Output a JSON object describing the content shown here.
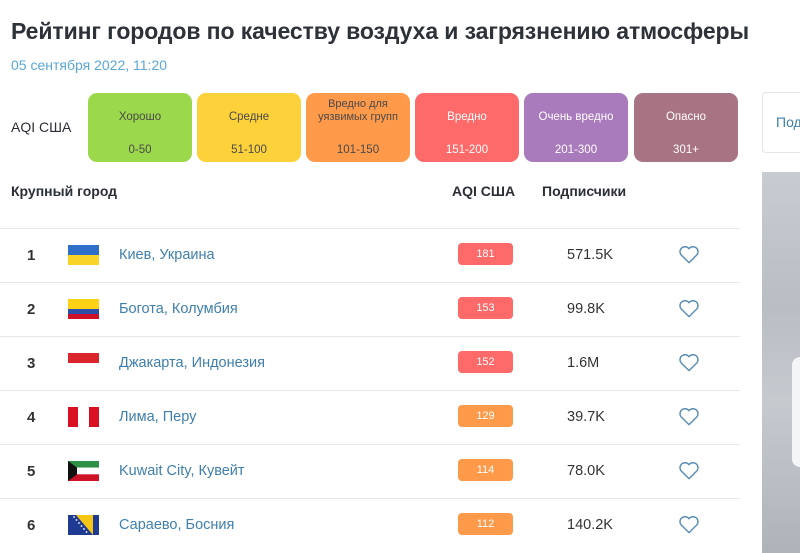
{
  "page": {
    "title": "Рейтинг городов по качеству воздуха и загрязнению атмосферы",
    "date": "05 сентября 2022, 11:20"
  },
  "legend": {
    "label": "AQI США",
    "items": [
      {
        "name": "Хорошо",
        "range": "0-50",
        "color": "#9bd84c"
      },
      {
        "name": "Средне",
        "range": "51-100",
        "color": "#fcd13a"
      },
      {
        "name": "Вредно для уязвимых групп",
        "range": "101-150",
        "color": "#fe9a4a"
      },
      {
        "name": "Вредно",
        "range": "151-200",
        "color": "#fe6a69"
      },
      {
        "name": "Очень вредно",
        "range": "201-300",
        "color": "#a97abc"
      },
      {
        "name": "Опасно",
        "range": "301+",
        "color": "#a87383"
      }
    ]
  },
  "table": {
    "headers": {
      "city": "Крупный город",
      "aqi": "AQI США",
      "subscribers": "Подписчики"
    },
    "rows": [
      {
        "rank": "1",
        "flag": "ukraine",
        "city": "Киев, Украина",
        "aqi": "181",
        "aqi_color": "#fe6a69",
        "subscribers": "571.5K"
      },
      {
        "rank": "2",
        "flag": "colombia",
        "city": "Богота, Колумбия",
        "aqi": "153",
        "aqi_color": "#fe6a69",
        "subscribers": "99.8K"
      },
      {
        "rank": "3",
        "flag": "indonesia",
        "city": "Джакарта, Индонезия",
        "aqi": "152",
        "aqi_color": "#fe6a69",
        "subscribers": "1.6M"
      },
      {
        "rank": "4",
        "flag": "peru",
        "city": "Лима, Перу",
        "aqi": "129",
        "aqi_color": "#fe9a4a",
        "subscribers": "39.7K"
      },
      {
        "rank": "5",
        "flag": "kuwait",
        "city": "Kuwait City, Кувейт",
        "aqi": "114",
        "aqi_color": "#fe9a4a",
        "subscribers": "78.0K"
      },
      {
        "rank": "6",
        "flag": "bosnia",
        "city": "Сараево, Босния",
        "aqi": "112",
        "aqi_color": "#fe9a4a",
        "subscribers": "140.2K"
      }
    ]
  },
  "sidebar": {
    "cut_text": "Под"
  }
}
